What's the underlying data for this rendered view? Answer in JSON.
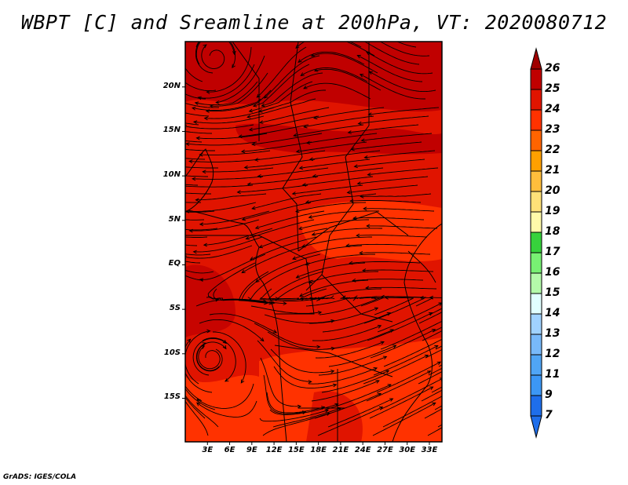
{
  "title": "WBPT [C] and Sreamline at 200hPa, VT: 2020080712",
  "credit": "GrADS: IGES/COLA",
  "map": {
    "lat_labels": [
      "20N",
      "15N",
      "10N",
      "5N",
      "EQ",
      "5S",
      "10S",
      "15S"
    ],
    "lat_values": [
      20,
      15,
      10,
      5,
      0,
      -5,
      -10,
      -15
    ],
    "lon_labels": [
      "3E",
      "6E",
      "9E",
      "12E",
      "15E",
      "18E",
      "21E",
      "24E",
      "27E",
      "30E",
      "33E"
    ],
    "lon_values": [
      3,
      6,
      9,
      12,
      15,
      18,
      21,
      24,
      27,
      30,
      33
    ],
    "extent": {
      "lon_min": 0,
      "lon_max": 34.7,
      "lat_min": -19.9,
      "lat_max": 25.1
    }
  },
  "colorbar": {
    "labels": [
      "26",
      "25",
      "24",
      "23",
      "22",
      "21",
      "20",
      "19",
      "18",
      "17",
      "16",
      "15",
      "14",
      "13",
      "12",
      "11",
      "9",
      "7"
    ],
    "colors": [
      "#c00000",
      "#e01400",
      "#ff3200",
      "#ff6400",
      "#ffa000",
      "#ffbe3c",
      "#ffe178",
      "#fffaaa",
      "#37d23c",
      "#78f073",
      "#b4faaa",
      "#e1ffff",
      "#a0d2ff",
      "#78b9fa",
      "#50a5f5",
      "#3c97f5",
      "#1e6eeb"
    ],
    "over_color": "#a00000",
    "under_color": "#1e6eeb"
  }
}
